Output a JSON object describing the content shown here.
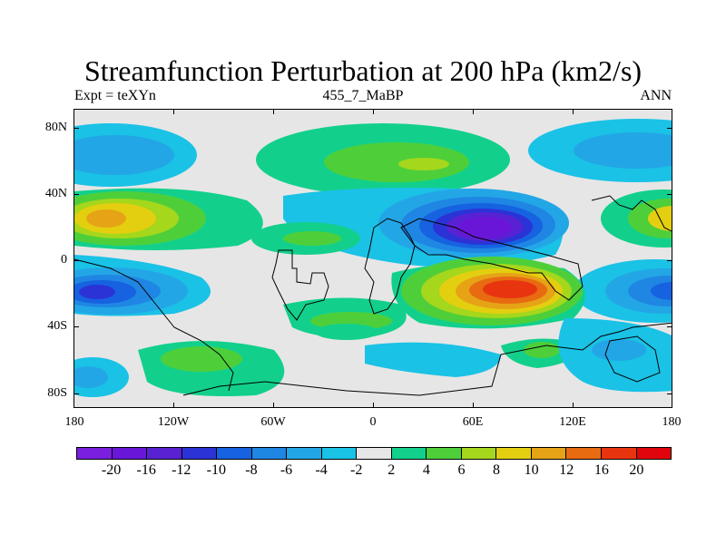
{
  "title": "Streamfunction Perturbation at 200 hPa (km2/s)",
  "left_subtitle": "Expt = teXYn",
  "center_subtitle": "455_7_MaBP",
  "right_subtitle": "ANN",
  "lat_labels": [
    "80N",
    "40N",
    "0",
    "40S",
    "80S"
  ],
  "lon_labels": [
    "180",
    "120W",
    "60W",
    "0",
    "60E",
    "120E",
    "180"
  ],
  "colorbar": {
    "colors": [
      "#7a1fdf",
      "#6a16d9",
      "#5822d2",
      "#2b33d6",
      "#1662e0",
      "#1f86e3",
      "#23a6e6",
      "#1ac2e6",
      "#e6e6e6",
      "#12d08c",
      "#4ecf3a",
      "#a5d71c",
      "#e3cf10",
      "#e6a316",
      "#e86a11",
      "#e8350f",
      "#e0050c"
    ],
    "labels": [
      "-20",
      "-16",
      "-12",
      "-10",
      "-8",
      "-6",
      "-4",
      "-2",
      "2",
      "4",
      "6",
      "8",
      "10",
      "12",
      "16",
      "20"
    ]
  }
}
